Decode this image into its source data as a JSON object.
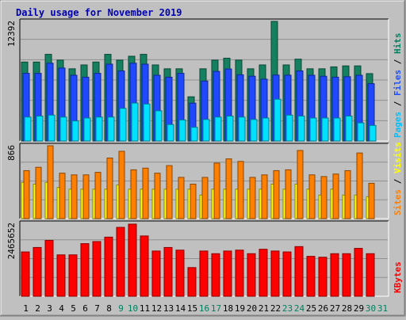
{
  "chart_data": [
    {
      "type": "bar",
      "title": "Daily usage for November 2019",
      "y_label_max": "12392",
      "ylim": [
        0,
        12392
      ],
      "categories": [
        "1",
        "2",
        "3",
        "4",
        "5",
        "6",
        "7",
        "8",
        "9",
        "10",
        "11",
        "12",
        "13",
        "14",
        "15",
        "16",
        "17",
        "18",
        "19",
        "20",
        "21",
        "22",
        "23",
        "24",
        "25",
        "26",
        "27",
        "28",
        "29",
        "30",
        "31"
      ],
      "legend": [
        {
          "text": "Pages",
          "color": "#00c0ff"
        },
        {
          "text": " / ",
          "color": "#000000"
        },
        {
          "text": "Files",
          "color": "#2050ff"
        },
        {
          "text": " / ",
          "color": "#000000"
        },
        {
          "text": "Hits",
          "color": "#008060"
        }
      ],
      "series": [
        {
          "name": "Hits",
          "color": "#148060",
          "values": [
            8180,
            8180,
            8980,
            8380,
            7480,
            7880,
            8180,
            8980,
            8380,
            8780,
            8980,
            7880,
            7480,
            7480,
            4580,
            7480,
            8380,
            8580,
            8380,
            7480,
            7880,
            12392,
            7880,
            8480,
            7480,
            7480,
            7680,
            7780,
            7780,
            6980,
            0
          ]
        },
        {
          "name": "Files",
          "color": "#1f48ff",
          "values": [
            7010,
            7010,
            8060,
            7560,
            6810,
            6610,
            7010,
            7960,
            7260,
            8060,
            7960,
            6810,
            6610,
            7010,
            3920,
            6210,
            7210,
            7460,
            6860,
            6710,
            6410,
            6830,
            6820,
            7260,
            6810,
            6710,
            6610,
            6660,
            6810,
            5940,
            0
          ]
        },
        {
          "name": "Pages",
          "color": "#00e0ff",
          "values": [
            2480,
            2580,
            2680,
            2480,
            2080,
            2380,
            2480,
            2480,
            3380,
            3930,
            3830,
            3130,
            1710,
            2180,
            1420,
            2230,
            2480,
            2580,
            2480,
            2230,
            2380,
            4330,
            2680,
            2580,
            2380,
            2380,
            2380,
            2580,
            1880,
            1610,
            0
          ]
        }
      ]
    },
    {
      "type": "bar",
      "y_label_max": "866",
      "ylim": [
        0,
        866
      ],
      "categories": [
        "1",
        "2",
        "3",
        "4",
        "5",
        "6",
        "7",
        "8",
        "9",
        "10",
        "11",
        "12",
        "13",
        "14",
        "15",
        "16",
        "17",
        "18",
        "19",
        "20",
        "21",
        "22",
        "23",
        "24",
        "25",
        "26",
        "27",
        "28",
        "29",
        "30",
        "31"
      ],
      "legend": [
        {
          "text": "Sites",
          "color": "#ff8000"
        },
        {
          "text": " / ",
          "color": "#000000"
        },
        {
          "text": "Visits",
          "color": "#ffff00"
        }
      ],
      "series": [
        {
          "name": "Visits",
          "color": "#ffff00",
          "values": [
            430,
            410,
            430,
            370,
            350,
            350,
            350,
            350,
            400,
            350,
            350,
            350,
            350,
            350,
            350,
            280,
            350,
            350,
            350,
            350,
            350,
            410,
            350,
            410,
            350,
            280,
            350,
            280,
            280,
            260,
            0
          ]
        },
        {
          "name": "Sites",
          "color": "#ff8000",
          "values": [
            570,
            610,
            866,
            540,
            520,
            520,
            550,
            720,
            800,
            580,
            600,
            540,
            630,
            490,
            410,
            490,
            660,
            710,
            680,
            490,
            520,
            570,
            580,
            810,
            520,
            500,
            530,
            570,
            780,
            420,
            0
          ]
        }
      ]
    },
    {
      "type": "bar",
      "y_label_max": "2465652",
      "ylim": [
        0,
        2465652
      ],
      "categories": [
        "1",
        "2",
        "3",
        "4",
        "5",
        "6",
        "7",
        "8",
        "9",
        "10",
        "11",
        "12",
        "13",
        "14",
        "15",
        "16",
        "17",
        "18",
        "19",
        "20",
        "21",
        "22",
        "23",
        "24",
        "25",
        "26",
        "27",
        "28",
        "29",
        "30",
        "31"
      ],
      "legend": [
        {
          "text": "KBytes",
          "color": "#ff0000"
        }
      ],
      "series": [
        {
          "name": "KBytes",
          "color": "#ff0000",
          "values": [
            1500000,
            1650000,
            1890000,
            1400000,
            1400000,
            1780000,
            1850000,
            2000000,
            2330000,
            2440000,
            2040000,
            1530000,
            1650000,
            1560000,
            970000,
            1530000,
            1440000,
            1530000,
            1560000,
            1440000,
            1590000,
            1530000,
            1500000,
            1680000,
            1350000,
            1320000,
            1440000,
            1440000,
            1620000,
            1440000,
            0
          ]
        }
      ]
    }
  ],
  "weekend_day_color": "#008060",
  "weekday_day_color": "#000000",
  "weekend_days": [
    "9",
    "10",
    "16",
    "17",
    "23",
    "24",
    "30",
    "31"
  ]
}
